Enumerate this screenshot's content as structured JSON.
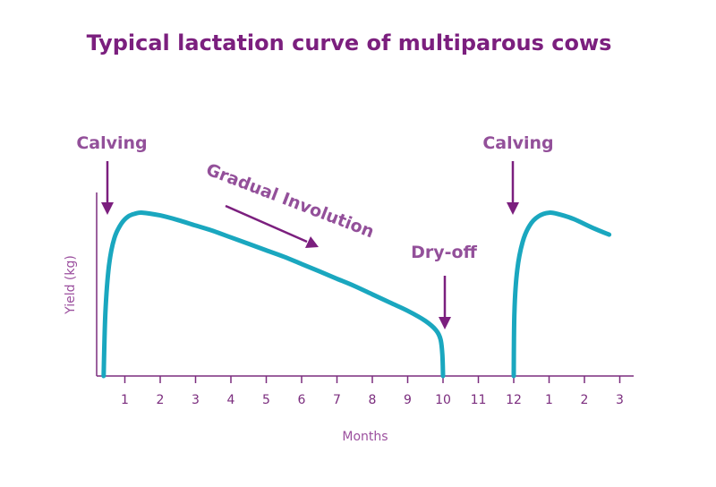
{
  "chart_data": {
    "type": "line",
    "title": "Typical lactation curve of multiparous cows",
    "xlabel": "Months",
    "ylabel": "Yield (kg)",
    "x_tick_labels": [
      "1",
      "2",
      "3",
      "4",
      "5",
      "6",
      "7",
      "8",
      "9",
      "10",
      "11",
      "12",
      "1",
      "2",
      "3"
    ],
    "y_ticks": "none",
    "grid": false,
    "series": [
      {
        "points": [
          [
            0.4,
            0.0
          ],
          [
            0.45,
            0.35
          ],
          [
            0.55,
            0.6
          ],
          [
            0.7,
            0.75
          ],
          [
            0.9,
            0.83
          ],
          [
            1.1,
            0.87
          ],
          [
            1.3,
            0.885
          ],
          [
            1.5,
            0.89
          ],
          [
            2.0,
            0.875
          ],
          [
            2.5,
            0.85
          ],
          [
            3.0,
            0.82
          ],
          [
            3.5,
            0.79
          ],
          [
            4.0,
            0.755
          ],
          [
            4.5,
            0.72
          ],
          [
            5.0,
            0.685
          ],
          [
            5.5,
            0.65
          ],
          [
            6.0,
            0.61
          ],
          [
            6.5,
            0.57
          ],
          [
            7.0,
            0.53
          ],
          [
            7.5,
            0.49
          ],
          [
            8.0,
            0.445
          ],
          [
            8.5,
            0.4
          ],
          [
            9.0,
            0.355
          ],
          [
            9.5,
            0.3
          ],
          [
            9.8,
            0.25
          ],
          [
            9.93,
            0.2
          ],
          [
            9.98,
            0.12
          ],
          [
            10.0,
            0.0
          ]
        ]
      },
      {
        "points": [
          [
            12.0,
            0.0
          ],
          [
            12.02,
            0.35
          ],
          [
            12.1,
            0.58
          ],
          [
            12.25,
            0.73
          ],
          [
            12.45,
            0.82
          ],
          [
            12.7,
            0.87
          ],
          [
            13.0,
            0.89
          ],
          [
            13.3,
            0.88
          ],
          [
            13.7,
            0.855
          ],
          [
            14.2,
            0.81
          ],
          [
            14.7,
            0.77
          ]
        ]
      }
    ],
    "annotations": [
      {
        "text": "Calving",
        "arrow": "down",
        "x": 0.3
      },
      {
        "text": "Gradual Involution",
        "arrow": "down-right"
      },
      {
        "text": "Dry-off",
        "arrow": "down",
        "x": 10.0
      },
      {
        "text": "Calving",
        "arrow": "down",
        "x": 12.0
      }
    ],
    "colors": {
      "line": "#1aa7bf",
      "axis": "#7b2d7e",
      "arrow": "#7b1f7e",
      "annotation_text": "#93509a"
    }
  }
}
